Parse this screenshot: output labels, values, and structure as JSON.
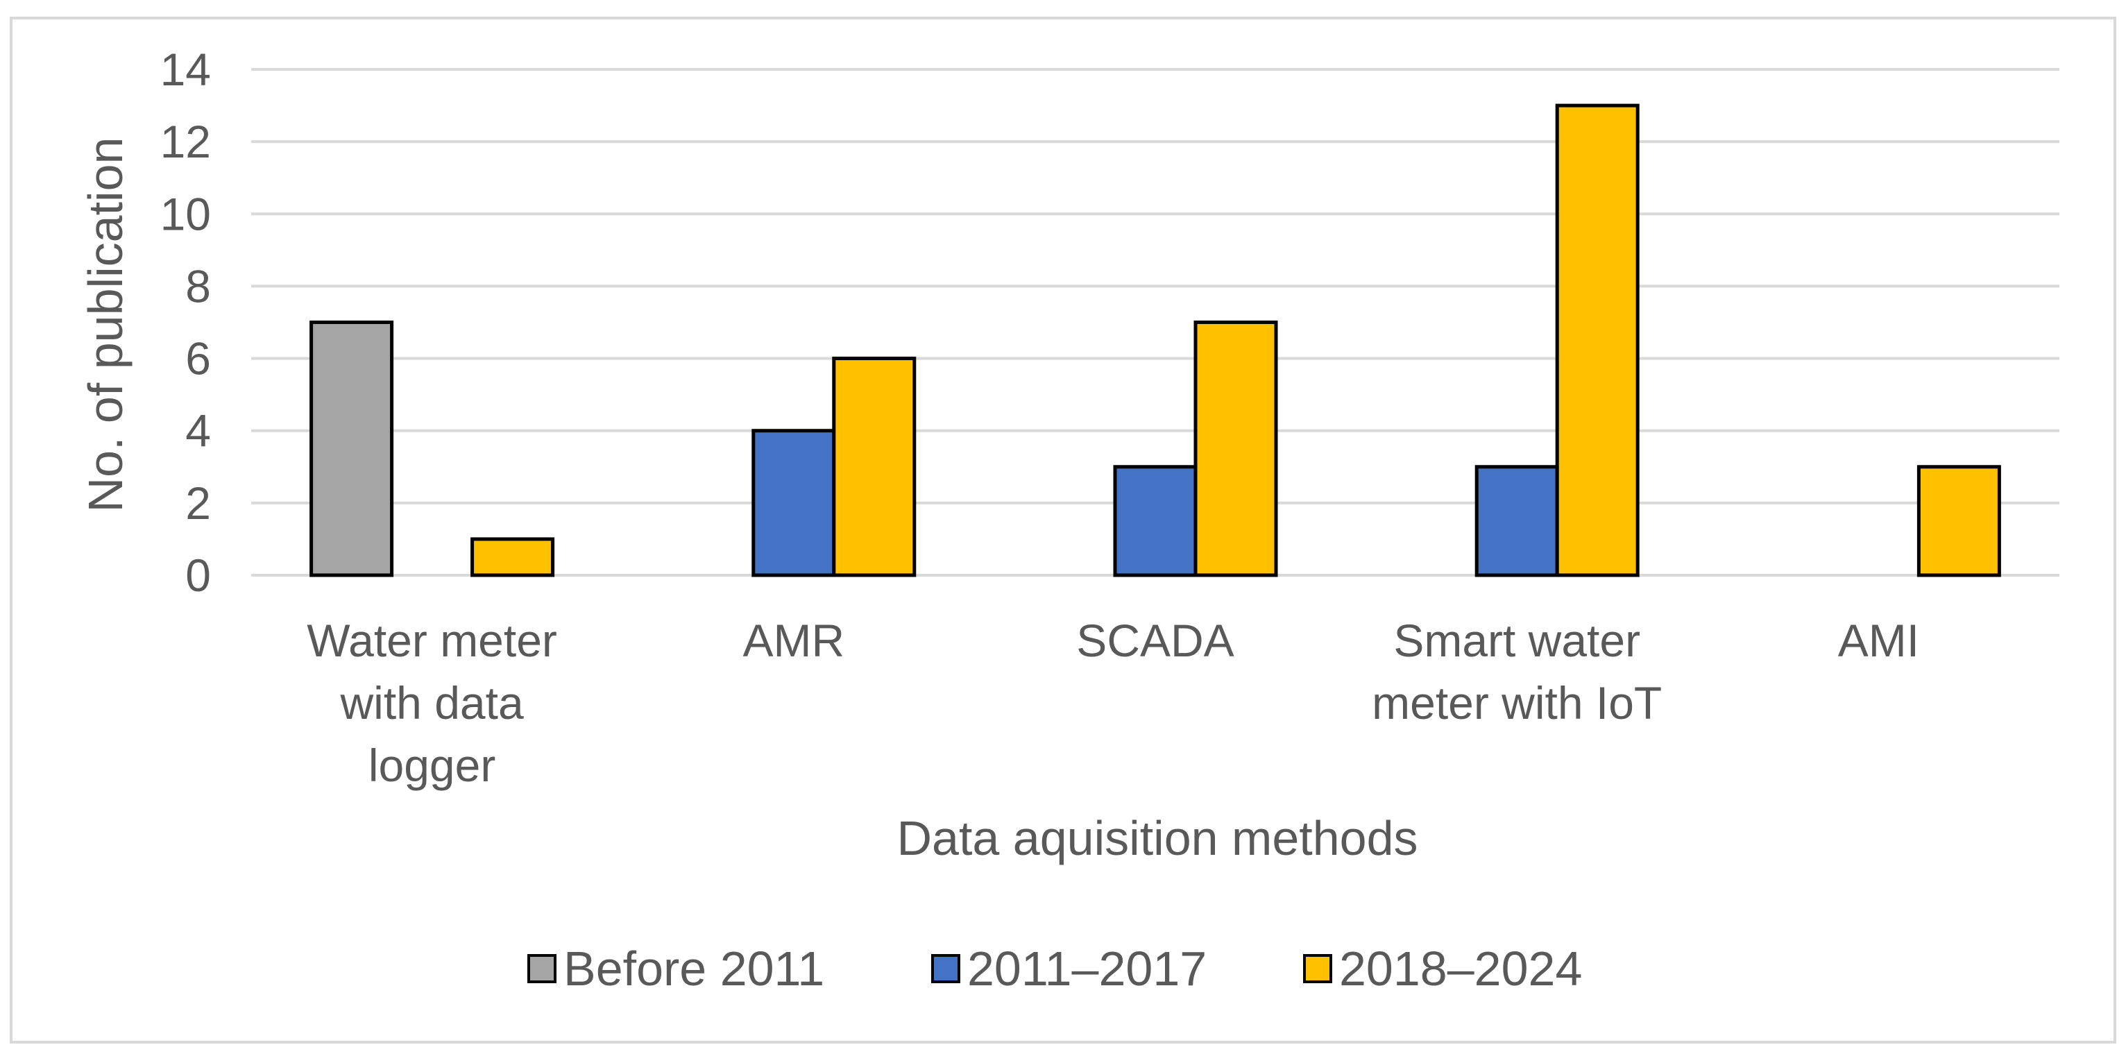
{
  "chart_data": {
    "type": "bar",
    "title": "",
    "xlabel": "Data aquisition methods",
    "ylabel": "No. of publication",
    "ylim": [
      0,
      14
    ],
    "yticks": [
      0,
      2,
      4,
      6,
      8,
      10,
      12,
      14
    ],
    "grid": true,
    "legend_position": "bottom",
    "categories": [
      [
        "Water meter",
        "with data",
        "logger"
      ],
      [
        "AMR"
      ],
      [
        "SCADA"
      ],
      [
        "Smart water",
        "meter with IoT"
      ],
      [
        "AMI"
      ]
    ],
    "series": [
      {
        "name": "Before 2011",
        "color": "#a5a5a5",
        "values": [
          7,
          0,
          0,
          0,
          0
        ]
      },
      {
        "name": "2011–2017",
        "color": "#4472c4",
        "values": [
          0,
          4,
          3,
          3,
          0
        ]
      },
      {
        "name": "2018–2024",
        "color": "#ffc000",
        "values": [
          1,
          6,
          7,
          13,
          3
        ]
      }
    ]
  }
}
